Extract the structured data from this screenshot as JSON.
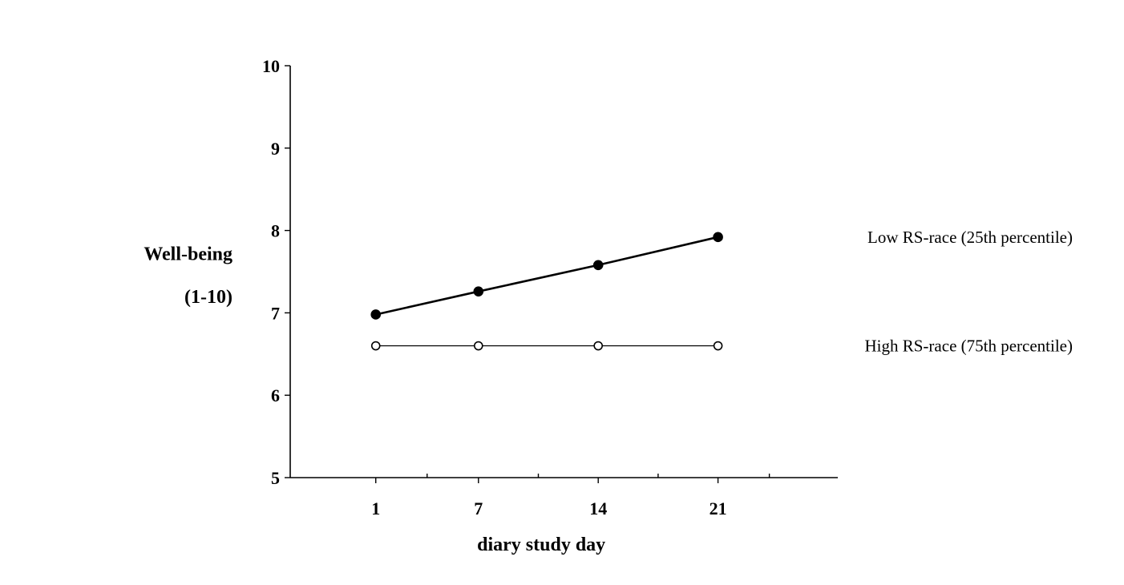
{
  "chart_data": {
    "type": "line",
    "xlabel": "diary study day",
    "ylabel": "Well-being",
    "ylabel_line2": "(1-10)",
    "ylim": [
      5,
      10
    ],
    "xlim": [
      -4,
      28
    ],
    "yticks": [
      5,
      6,
      7,
      8,
      9,
      10
    ],
    "xticks": [
      1,
      7,
      14,
      21
    ],
    "xticks_minor": [
      4,
      10.5,
      17.5,
      24
    ],
    "grid": false,
    "legend": "inline-right",
    "x": [
      1,
      7,
      14,
      21
    ],
    "series": [
      {
        "name": "Low RS-race (25th percentile)",
        "values": [
          6.98,
          7.26,
          7.58,
          7.92
        ],
        "marker": "filled-circle",
        "line_weight": "heavy",
        "color": "#000000"
      },
      {
        "name": "High RS-race (75th percentile)",
        "values": [
          6.6,
          6.6,
          6.6,
          6.6
        ],
        "marker": "open-circle",
        "line_weight": "thin",
        "color": "#000000"
      }
    ]
  }
}
